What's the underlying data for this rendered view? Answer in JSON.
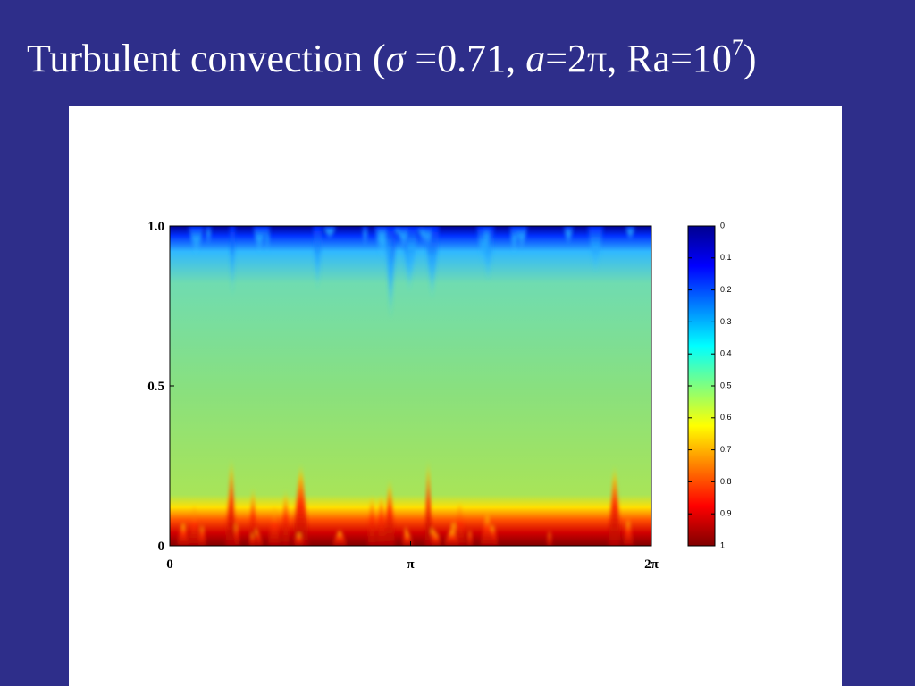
{
  "slide": {
    "title_parts": [
      "Turbulent convection (",
      "σ",
      " =0.71, ",
      "a",
      "=2π, Ra=10",
      "7",
      ")"
    ],
    "figure": {
      "x_tick_labels": [
        "0",
        "π",
        "2π"
      ],
      "y_tick_labels": [
        "0",
        "0.5",
        "1.0"
      ],
      "colorbar_labels": [
        "0",
        "0.1",
        "0.2",
        "0.3",
        "0.4",
        "0.5",
        "0.6",
        "0.7",
        "0.8",
        "0.9",
        "1"
      ]
    }
  }
}
